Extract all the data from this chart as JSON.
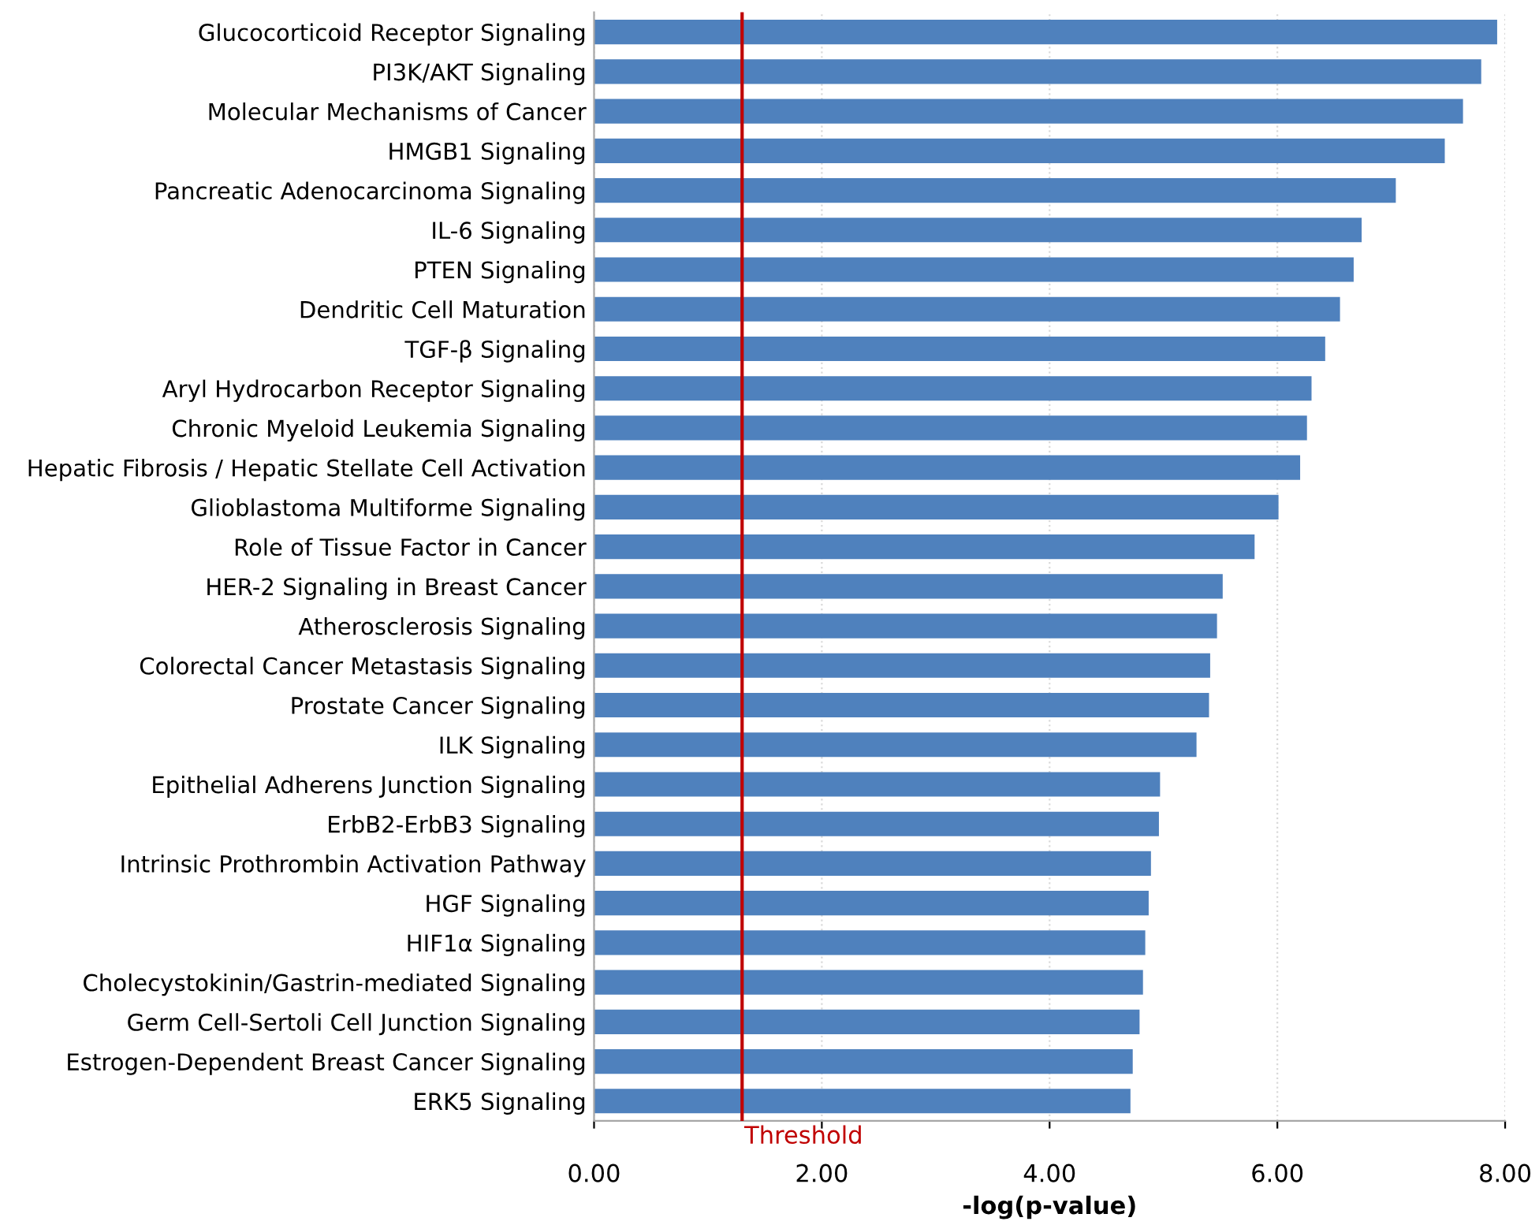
{
  "chart_data": {
    "type": "bar",
    "orientation": "horizontal",
    "xlabel": "-log(p-value)",
    "categories": [
      "Glucocorticoid Receptor Signaling",
      "PI3K/AKT Signaling",
      "Molecular Mechanisms of Cancer",
      "HMGB1 Signaling",
      "Pancreatic Adenocarcinoma Signaling",
      "IL-6 Signaling",
      "PTEN Signaling",
      "Dendritic Cell Maturation",
      "TGF-β Signaling",
      "Aryl Hydrocarbon Receptor Signaling",
      "Chronic Myeloid Leukemia Signaling",
      "Hepatic Fibrosis / Hepatic Stellate Cell Activation",
      "Glioblastoma Multiforme Signaling",
      "Role of Tissue Factor in Cancer",
      "HER-2 Signaling in Breast Cancer",
      "Atherosclerosis Signaling",
      "Colorectal Cancer Metastasis Signaling",
      "Prostate Cancer Signaling",
      "ILK Signaling",
      "Epithelial Adherens Junction Signaling",
      "ErbB2-ErbB3 Signaling",
      "Intrinsic Prothrombin Activation Pathway",
      "HGF Signaling",
      "HIF1α Signaling",
      "Cholecystokinin/Gastrin-mediated Signaling",
      "Germ Cell-Sertoli Cell Junction Signaling",
      "Estrogen-Dependent Breast Cancer Signaling",
      "ERK5 Signaling"
    ],
    "values": [
      7.93,
      7.79,
      7.63,
      7.47,
      7.04,
      6.74,
      6.67,
      6.55,
      6.42,
      6.3,
      6.26,
      6.2,
      6.01,
      5.8,
      5.52,
      5.47,
      5.41,
      5.4,
      5.29,
      4.97,
      4.96,
      4.89,
      4.87,
      4.84,
      4.82,
      4.79,
      4.73,
      4.71
    ],
    "color": "#4f81bd",
    "xlim": [
      0,
      8
    ],
    "xticks": [
      {
        "value": 0,
        "label": "0.00"
      },
      {
        "value": 2,
        "label": "2.00"
      },
      {
        "value": 4,
        "label": "4.00"
      },
      {
        "value": 6,
        "label": "6.00"
      },
      {
        "value": 8,
        "label": "8.00"
      }
    ],
    "grid": "x",
    "ref_lines": [
      {
        "axis": "x",
        "value": 1.3,
        "label": "Threshold",
        "color": "#c00000"
      }
    ]
  }
}
